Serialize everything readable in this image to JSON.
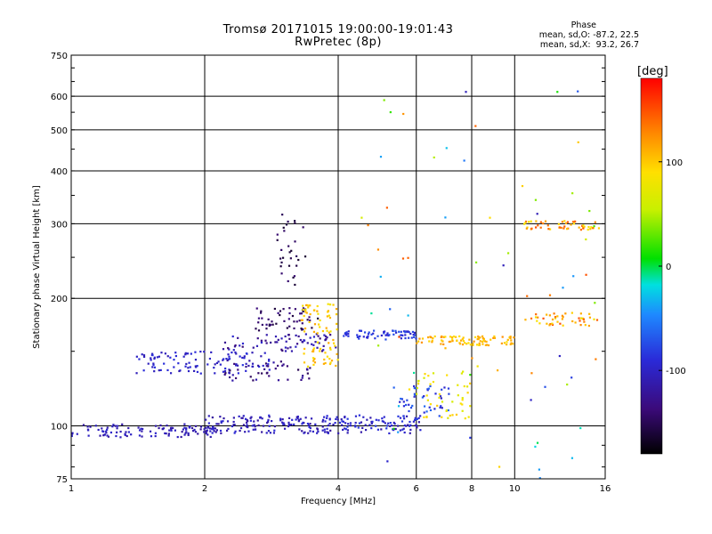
{
  "chart_data": {
    "type": "scatter",
    "title": "Tromsø 20171015 19:00:00-19:01:43",
    "subtitle": "RwPretec (8p)",
    "xlabel": "Frequency [MHz]",
    "ylabel": "Stationary phase Virtual Height [km]",
    "x_scale": "log",
    "y_scale": "log",
    "xlim": [
      1,
      16
    ],
    "ylim": [
      75,
      750
    ],
    "x_ticks": [
      "1",
      "2",
      "4",
      "6",
      "8",
      "10",
      "16"
    ],
    "x_tick_values": [
      1,
      2,
      4,
      6,
      8,
      10,
      16
    ],
    "y_ticks": [
      "750",
      "600",
      "500",
      "400",
      "300",
      "200",
      "100",
      "75"
    ],
    "y_tick_values": [
      750,
      600,
      500,
      400,
      300,
      200,
      100,
      75
    ],
    "grid": true,
    "colorbar": {
      "label": "[deg]",
      "range": [
        -180,
        180
      ],
      "ticks": [
        "100",
        "0",
        "-100"
      ],
      "tick_values": [
        100,
        0,
        -100
      ]
    },
    "stats": {
      "header": "Phase",
      "line_o": "mean, sd,O: -87.2, 22.5",
      "line_x": "mean, sd,X:  93.2, 26.7"
    },
    "series": [
      {
        "x_range": [
          1.0,
          2.1
        ],
        "y_range": [
          94,
          101
        ],
        "phase_range": [
          -120,
          -95
        ],
        "count": 110
      },
      {
        "x_range": [
          2.0,
          4.0
        ],
        "y_range": [
          96,
          106
        ],
        "phase_range": [
          -120,
          -90
        ],
        "count": 150
      },
      {
        "x_range": [
          4.0,
          6.2
        ],
        "y_range": [
          96,
          106
        ],
        "phase_range": [
          -115,
          -80
        ],
        "count": 90
      },
      {
        "x_range": [
          5.5,
          7.2
        ],
        "y_range": [
          103,
          125
        ],
        "phase_range": [
          -100,
          -60
        ],
        "count": 45
      },
      {
        "x_range": [
          6.0,
          8.0
        ],
        "y_range": [
          104,
          135
        ],
        "phase_range": [
          60,
          100
        ],
        "count": 45
      },
      {
        "x_range": [
          1.4,
          2.8
        ],
        "y_range": [
          133,
          150
        ],
        "phase_range": [
          -110,
          -85
        ],
        "count": 110
      },
      {
        "x_range": [
          2.2,
          3.5
        ],
        "y_range": [
          128,
          143
        ],
        "phase_range": [
          -150,
          -110
        ],
        "count": 45
      },
      {
        "x_range": [
          2.2,
          4.0
        ],
        "y_range": [
          150,
          165
        ],
        "phase_range": [
          -140,
          -95
        ],
        "count": 70
      },
      {
        "x_range": [
          2.6,
          3.6
        ],
        "y_range": [
          168,
          190
        ],
        "phase_range": [
          -160,
          -130
        ],
        "count": 50
      },
      {
        "x_range": [
          3.3,
          4.0
        ],
        "y_range": [
          138,
          195
        ],
        "phase_range": [
          80,
          115
        ],
        "count": 80
      },
      {
        "x_range": [
          4.0,
          6.0
        ],
        "y_range": [
          160,
          168
        ],
        "phase_range": [
          -100,
          -70
        ],
        "count": 70
      },
      {
        "x_range": [
          6.0,
          10.0
        ],
        "y_range": [
          155,
          163
        ],
        "phase_range": [
          90,
          125
        ],
        "count": 90
      },
      {
        "x_range": [
          10.5,
          15.5
        ],
        "y_range": [
          172,
          185
        ],
        "phase_range": [
          80,
          150
        ],
        "count": 45
      },
      {
        "x_range": [
          10.5,
          15.5
        ],
        "y_range": [
          290,
          305
        ],
        "phase_range": [
          80,
          150
        ],
        "count": 50
      },
      {
        "x_range": [
          2.9,
          3.4
        ],
        "y_range": [
          215,
          320
        ],
        "phase_range": [
          -165,
          -140
        ],
        "count": 30
      },
      {
        "x_range": [
          4.5,
          16
        ],
        "y_range": [
          75,
          620
        ],
        "phase_range": [
          -120,
          150
        ],
        "count": 70
      }
    ]
  }
}
